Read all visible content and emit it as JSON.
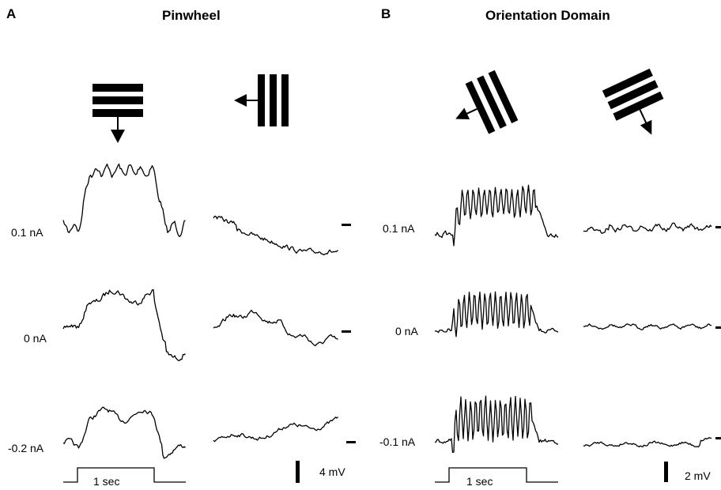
{
  "panels": [
    {
      "letter": "A",
      "title": "Pinwheel",
      "currents": [
        "0.1 nA",
        "0 nA",
        "-0.2 nA"
      ],
      "stimulus_label": "1 sec",
      "scale_label": "4 mV",
      "stimuli": [
        {
          "description": "horizontal-grating-arrow-down"
        },
        {
          "description": "vertical-grating-arrow-left"
        }
      ]
    },
    {
      "letter": "B",
      "title": "Orientation Domain",
      "currents": [
        "0.1 nA",
        "0 nA",
        "-0.1 nA"
      ],
      "stimulus_label": "1 sec",
      "scale_label": "2 mV",
      "stimuli": [
        {
          "description": "oblique-grating-arrow-down-left"
        },
        {
          "description": "oblique-grating-arrow-down-right"
        }
      ]
    }
  ]
}
